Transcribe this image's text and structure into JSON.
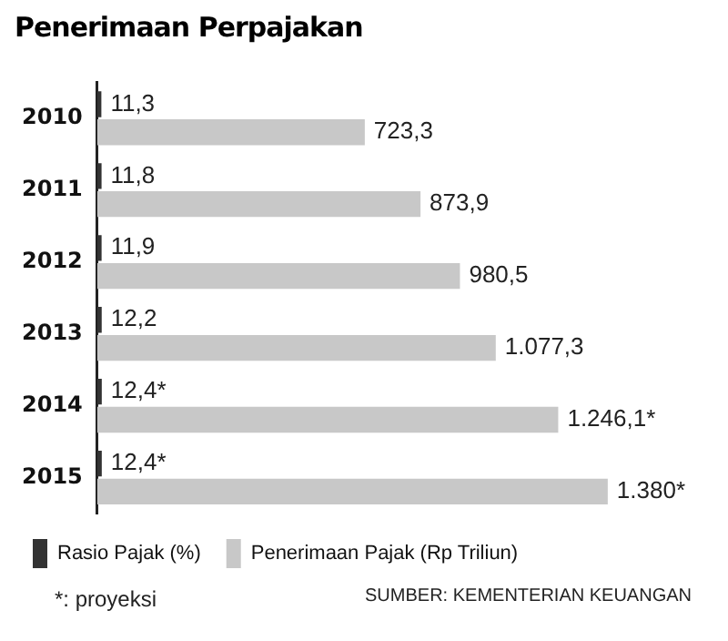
{
  "chart_data": {
    "type": "bar",
    "orientation": "horizontal",
    "title": "Penerimaan Perpajakan",
    "categories": [
      "2010",
      "2011",
      "2012",
      "2013",
      "2014",
      "2015"
    ],
    "series": [
      {
        "name": "Rasio Pajak (%)",
        "color": "#333333",
        "values": [
          11.3,
          11.8,
          11.9,
          12.2,
          12.4,
          12.4
        ],
        "value_labels": [
          "11,3",
          "11,8",
          "11,9",
          "12,2",
          "12,4*",
          "12,4*"
        ]
      },
      {
        "name": "Penerimaan Pajak (Rp Triliun)",
        "color": "#c8c8c8",
        "values": [
          723.3,
          873.9,
          980.5,
          1077.3,
          1246.1,
          1380
        ],
        "value_labels": [
          "723,3",
          "873,9",
          "980,5",
          "1.077,3",
          "1.246,1*",
          "1.380*"
        ]
      }
    ],
    "legend": "bottom",
    "annotations": [
      "*: proyeksi",
      "SUMBER: KEMENTERIAN KEUANGAN"
    ]
  }
}
